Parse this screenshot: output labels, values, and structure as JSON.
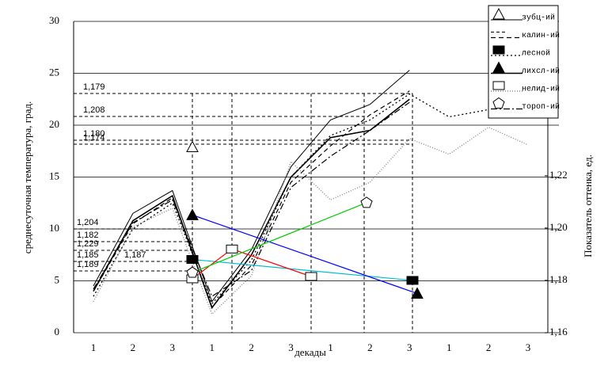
{
  "chart_data": {
    "type": "line",
    "y_label": "среднесуточная температура, град.",
    "y2_label": "Показатель оттенка, ед.",
    "x_label": "декады",
    "categories": [
      "1",
      "2",
      "3",
      "1",
      "2",
      "3",
      "1",
      "2",
      "3",
      "1",
      "2",
      "3"
    ],
    "ylim": [
      0,
      30
    ],
    "yticks": [
      0,
      5,
      10,
      15,
      20,
      25,
      30
    ],
    "y2lim": [
      1.16,
      1.279
    ],
    "y2ticks": [
      {
        "value": 1.16,
        "label": "1,16"
      },
      {
        "value": 1.18,
        "label": "1,18"
      },
      {
        "value": 1.2,
        "label": "1,20"
      },
      {
        "value": 1.22,
        "label": "1,22"
      }
    ],
    "grid": true,
    "legend": "top-right",
    "series": [
      {
        "name": "зубц-ий",
        "color": "#000000",
        "values": [
          4.5,
          11.5,
          13.7,
          3,
          8,
          16,
          20.5,
          22,
          25.3,
          null,
          null,
          null
        ],
        "y2_values": [
          1.231
        ]
      },
      {
        "name": "калин-ий",
        "color": "#000000",
        "values": [
          4,
          10.5,
          13,
          2.5,
          6.5,
          14.5,
          18,
          21,
          23.3,
          null,
          null,
          null
        ],
        "y2_values": []
      },
      {
        "name": "лесной",
        "color": "#000000",
        "values": [
          3.5,
          10,
          12.5,
          2.8,
          7,
          15,
          19,
          20.5,
          23,
          20.8,
          21.5,
          null
        ],
        "y2_values": [
          1.188,
          1.18
        ],
        "marker_line_color": "#00bcd4"
      },
      {
        "name": "лихсл-ий",
        "color": "#000000",
        "values": [
          4,
          10.8,
          13.2,
          2.4,
          7.5,
          15,
          18.8,
          19.5,
          22.5,
          null,
          null,
          null
        ],
        "y2_values": [
          1.205,
          1.175
        ],
        "marker_line_color": "#0000ff"
      },
      {
        "name": "нелид-ий",
        "color": "#888888",
        "values": [
          3,
          10.2,
          12,
          1.8,
          5.5,
          16.5,
          12.8,
          14.5,
          18.7,
          17.2,
          19.8,
          18.1
        ],
        "y2_values": [
          1.1806,
          1.192,
          1.1815
        ],
        "marker_line_color": "#ff0000"
      },
      {
        "name": "тороп-ий",
        "color": "#000000",
        "values": [
          4.2,
          10.6,
          12.8,
          3.5,
          6,
          14,
          17,
          19.5,
          22.2,
          null,
          null,
          null
        ],
        "y2_values": [
          1.183,
          1.2097
        ],
        "marker_line_color": "#00cc00"
      }
    ],
    "annotations": [
      "1,179",
      "1,208",
      "1,180",
      "1,174",
      "1,204",
      "1,182",
      "1,229",
      "1,185",
      "1,187",
      "1,189"
    ]
  }
}
